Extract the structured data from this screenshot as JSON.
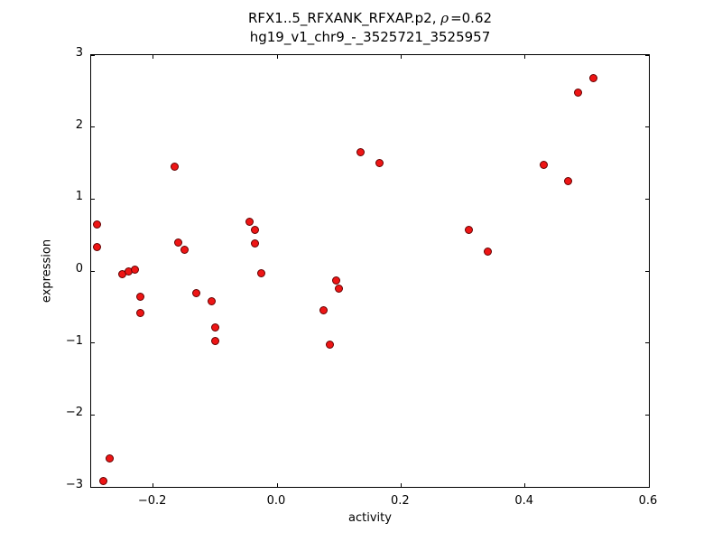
{
  "figure": {
    "title_prefix": "RFX1..5_RFXANK_RFXAP.p2, ",
    "title_rho": "ρ",
    "title_eq": "=0.62",
    "subtitle": "hg19_v1_chr9_-_3525721_3525957"
  },
  "chart_data": {
    "type": "scatter",
    "title": "RFX1..5_RFXANK_RFXAP.p2, ρ=0.62",
    "subtitle": "hg19_v1_chr9_-_3525721_3525957",
    "xlabel": "activity",
    "ylabel": "expression",
    "xlim": [
      -0.3,
      0.6
    ],
    "ylim": [
      -3,
      3
    ],
    "xticks": [
      -0.2,
      0.0,
      0.2,
      0.4,
      0.6
    ],
    "yticks": [
      -3,
      -2,
      -1,
      0,
      1,
      2,
      3
    ],
    "grid": false,
    "legend": null,
    "marker": {
      "fill": "#ee1515",
      "edge": "#640000",
      "diameter": 9
    },
    "points": [
      [
        -0.29,
        0.65
      ],
      [
        -0.29,
        0.33
      ],
      [
        -0.27,
        -2.6
      ],
      [
        -0.28,
        -2.92
      ],
      [
        -0.25,
        -0.05
      ],
      [
        -0.24,
        0.0
      ],
      [
        -0.23,
        0.02
      ],
      [
        -0.22,
        -0.36
      ],
      [
        -0.22,
        -0.58
      ],
      [
        -0.165,
        1.45
      ],
      [
        -0.16,
        0.4
      ],
      [
        -0.15,
        0.3
      ],
      [
        -0.13,
        -0.31
      ],
      [
        -0.105,
        -0.42
      ],
      [
        -0.1,
        -0.78
      ],
      [
        -0.1,
        -0.97
      ],
      [
        -0.045,
        0.68
      ],
      [
        -0.035,
        0.57
      ],
      [
        -0.035,
        0.38
      ],
      [
        -0.025,
        -0.03
      ],
      [
        0.075,
        -0.55
      ],
      [
        0.085,
        -1.02
      ],
      [
        0.095,
        -0.13
      ],
      [
        0.1,
        -0.24
      ],
      [
        0.135,
        1.65
      ],
      [
        0.165,
        1.5
      ],
      [
        0.31,
        0.57
      ],
      [
        0.34,
        0.27
      ],
      [
        0.43,
        1.47
      ],
      [
        0.47,
        1.25
      ],
      [
        0.485,
        2.48
      ],
      [
        0.51,
        2.68
      ]
    ]
  }
}
